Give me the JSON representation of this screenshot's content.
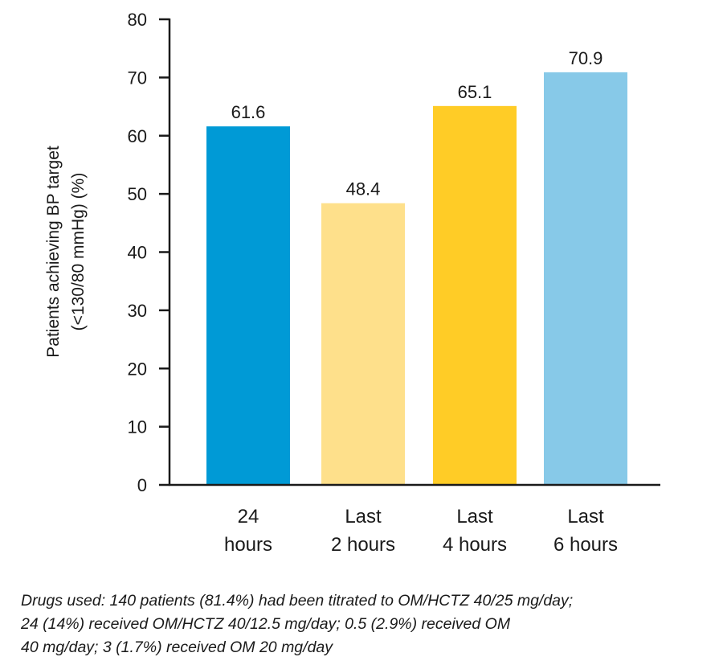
{
  "chart_data": {
    "type": "bar",
    "categories": [
      [
        "24",
        "hours"
      ],
      [
        "Last",
        "2 hours"
      ],
      [
        "Last",
        "4 hours"
      ],
      [
        "Last",
        "6 hours"
      ]
    ],
    "values": [
      61.6,
      48.4,
      65.1,
      70.9
    ],
    "value_labels": [
      "61.6",
      "48.4",
      "65.1",
      "70.9"
    ],
    "bar_colors": [
      "#009ad6",
      "#fee08b",
      "#ffcc26",
      "#87c9e8"
    ],
    "ylabel_lines": [
      "Patients achieving BP target",
      "(<130/80 mmHg) (%)"
    ],
    "xlabel": "",
    "title": "",
    "ylim": [
      0,
      80
    ],
    "yticks": [
      0,
      10,
      20,
      30,
      40,
      50,
      60,
      70,
      80
    ],
    "grid": false,
    "legend": "none"
  },
  "footnote": [
    "Drugs used: 140 patients (81.4%) had been titrated to OM/HCTZ 40/25 mg/day;",
    "24 (14%) received OM/HCTZ 40/12.5 mg/day; 0.5 (2.9%) received OM",
    "40 mg/day; 3 (1.7%) received OM 20 mg/day"
  ]
}
